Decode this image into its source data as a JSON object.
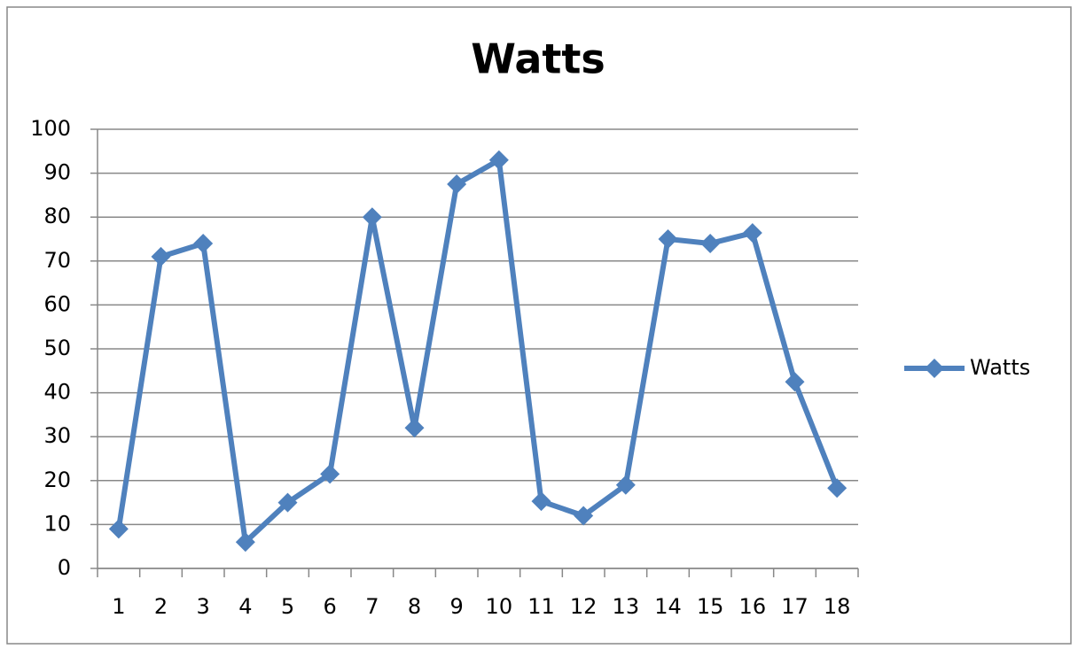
{
  "chart_data": {
    "type": "line",
    "title": "Watts",
    "categories": [
      "1",
      "2",
      "3",
      "4",
      "5",
      "6",
      "7",
      "8",
      "9",
      "10",
      "11",
      "12",
      "13",
      "14",
      "15",
      "16",
      "17",
      "18"
    ],
    "series": [
      {
        "name": "Watts",
        "color": "#4f81bd",
        "values": [
          9,
          71,
          74,
          6,
          15,
          21.5,
          80,
          32,
          87.5,
          93,
          15.3,
          12,
          19,
          75,
          74,
          76.4,
          42.5,
          18.3
        ]
      }
    ],
    "ylim": [
      0,
      100
    ],
    "yticks": [
      0,
      10,
      20,
      30,
      40,
      50,
      60,
      70,
      80,
      90,
      100
    ],
    "grid": true,
    "legend": "right"
  }
}
